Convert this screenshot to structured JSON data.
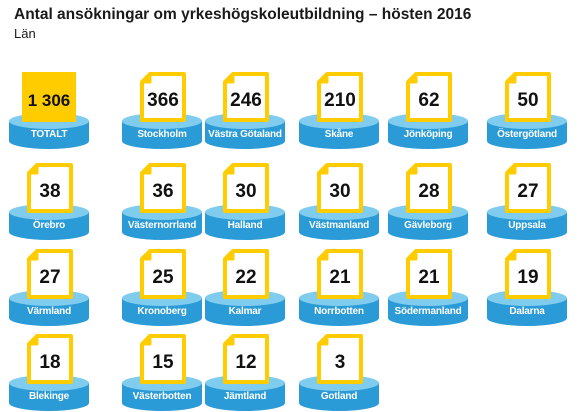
{
  "title": "Antal ansökningar om yrkeshögskoleutbildning – hösten 2016",
  "subtitle": "Län",
  "colors": {
    "accent": "#FFCC00",
    "accent_dark": "#E8B400",
    "disk_top": "#7FCCEE",
    "disk_side": "#2A9BD6",
    "doc_fill": "#FFFFFF"
  },
  "chart_data": {
    "type": "table",
    "title": "Antal ansökningar om yrkeshögskoleutbildning – hösten 2016",
    "subtitle": "Län",
    "categories": [
      "TOTALT",
      "Stockholm",
      "Västra Götaland",
      "Skåne",
      "Jönköping",
      "Östergötland",
      "Örebro",
      "Västernorrland",
      "Halland",
      "Västmanland",
      "Gävleborg",
      "Uppsala",
      "Värmland",
      "Kronoberg",
      "Kalmar",
      "Norrbotten",
      "Södermanland",
      "Dalarna",
      "Blekinge",
      "Västerbotten",
      "Jämtland",
      "Gotland"
    ],
    "values": [
      1306,
      366,
      246,
      210,
      62,
      50,
      38,
      36,
      30,
      30,
      28,
      27,
      27,
      25,
      22,
      21,
      21,
      19,
      18,
      15,
      12,
      3
    ],
    "value_labels": [
      "1 306",
      "366",
      "246",
      "210",
      "62",
      "50",
      "38",
      "36",
      "30",
      "30",
      "28",
      "27",
      "27",
      "25",
      "22",
      "21",
      "21",
      "19",
      "18",
      "15",
      "12",
      "3"
    ]
  }
}
